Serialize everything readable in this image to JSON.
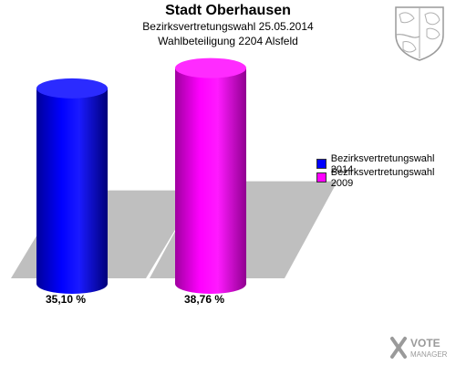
{
  "header": {
    "title": "Stadt Oberhausen",
    "subtitle": "Bezirksvertretungswahl 25.05.2014",
    "subtitle2": "Wahlbeteiligung 2204 Alsfeld"
  },
  "colors": {
    "series_2014": "#0000ff",
    "series_2009": "#ff00ff",
    "shadow": "#bfbfbf"
  },
  "brand": {
    "line1": "VOTE",
    "line2": "MANAGER"
  },
  "chart_data": {
    "type": "bar",
    "categories": [
      "Bezirksvertretungswahl 2014",
      "Bezirksvertretungswahl 2009"
    ],
    "values": [
      35.1,
      38.76
    ],
    "value_labels": [
      "35,10 %",
      "38,76 %"
    ],
    "ylim": [
      0,
      40
    ],
    "legend": [
      "Bezirksvertretungswahl 2014",
      "Bezirksvertretungswahl 2009"
    ],
    "legend_position": "right",
    "grid": false
  }
}
